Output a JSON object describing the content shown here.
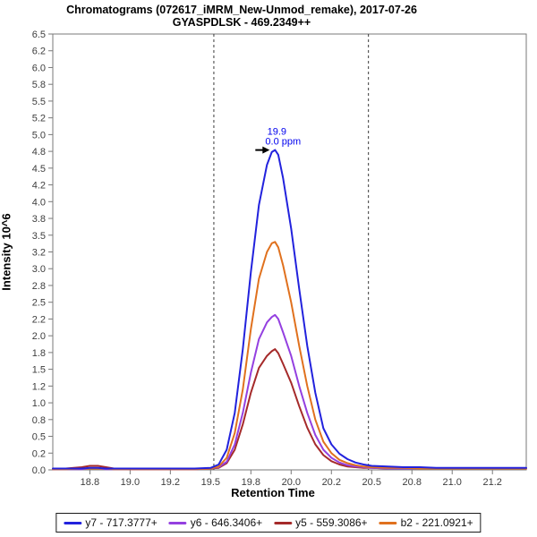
{
  "chart_data": {
    "type": "line",
    "title": "Chromatograms (072617_iMRM_New-Unmod_remake), 2017-07-26",
    "subtitle": "GYASPDLSK - 469.2349++",
    "xlabel": "Retention Time",
    "ylabel": "Intensity 10^6",
    "legend_position": "bottom",
    "grid": "off",
    "axes": {
      "x": {
        "min": 18.52,
        "max": 21.46,
        "ticks": [
          {
            "v": 18.75,
            "label": "18.8"
          },
          {
            "v": 19.0,
            "label": "19.0"
          },
          {
            "v": 19.25,
            "label": "19.2"
          },
          {
            "v": 19.5,
            "label": "19.5"
          },
          {
            "v": 19.75,
            "label": "19.8"
          },
          {
            "v": 20.0,
            "label": "20.0"
          },
          {
            "v": 20.25,
            "label": "20.2"
          },
          {
            "v": 20.5,
            "label": "20.5"
          },
          {
            "v": 20.75,
            "label": "20.8"
          },
          {
            "v": 21.0,
            "label": "21.0"
          },
          {
            "v": 21.25,
            "label": "21.2"
          }
        ]
      },
      "y": {
        "min": 0,
        "max": 6.5,
        "ticks": [
          {
            "v": 0,
            "label": "0.0"
          },
          {
            "v": 0.25,
            "label": "0.2"
          },
          {
            "v": 0.5,
            "label": "0.5"
          },
          {
            "v": 0.75,
            "label": "0.8"
          },
          {
            "v": 1,
            "label": "1.0"
          },
          {
            "v": 1.25,
            "label": "1.2"
          },
          {
            "v": 1.5,
            "label": "1.5"
          },
          {
            "v": 1.75,
            "label": "1.8"
          },
          {
            "v": 2,
            "label": "2.0"
          },
          {
            "v": 2.25,
            "label": "2.2"
          },
          {
            "v": 2.5,
            "label": "2.5"
          },
          {
            "v": 2.75,
            "label": "2.8"
          },
          {
            "v": 3,
            "label": "3.0"
          },
          {
            "v": 3.25,
            "label": "3.2"
          },
          {
            "v": 3.5,
            "label": "3.5"
          },
          {
            "v": 3.75,
            "label": "3.8"
          },
          {
            "v": 4,
            "label": "4.0"
          },
          {
            "v": 4.25,
            "label": "4.2"
          },
          {
            "v": 4.5,
            "label": "4.5"
          },
          {
            "v": 4.75,
            "label": "4.8"
          },
          {
            "v": 5,
            "label": "5.0"
          },
          {
            "v": 5.25,
            "label": "5.2"
          },
          {
            "v": 5.5,
            "label": "5.5"
          },
          {
            "v": 5.75,
            "label": "5.8"
          },
          {
            "v": 6,
            "label": "6.0"
          },
          {
            "v": 6.25,
            "label": "6.2"
          },
          {
            "v": 6.5,
            "label": "6.5"
          }
        ]
      }
    },
    "peak_boundaries": [
      19.52,
      20.48
    ],
    "annotation": {
      "rt": 19.9,
      "apex_intensity": 4.77,
      "lines": [
        "19.9",
        "0.0 ppm"
      ],
      "color": "#0000ee",
      "arrow_color": "#000000"
    },
    "x": [
      18.52,
      18.6,
      18.7,
      18.75,
      18.8,
      18.85,
      18.9,
      19.0,
      19.1,
      19.2,
      19.3,
      19.4,
      19.5,
      19.55,
      19.6,
      19.65,
      19.7,
      19.75,
      19.8,
      19.85,
      19.88,
      19.9,
      19.92,
      19.95,
      20.0,
      20.05,
      20.1,
      20.15,
      20.2,
      20.25,
      20.3,
      20.35,
      20.4,
      20.45,
      20.5,
      20.6,
      20.7,
      20.8,
      20.9,
      21.0,
      21.1,
      21.2,
      21.3,
      21.4,
      21.46
    ],
    "series": [
      {
        "id": "y7",
        "label": "y7 - 717.3777+",
        "color": "#2222dd",
        "values": [
          0.02,
          0.02,
          0.02,
          0.03,
          0.03,
          0.02,
          0.02,
          0.02,
          0.02,
          0.02,
          0.02,
          0.02,
          0.03,
          0.08,
          0.3,
          0.85,
          1.8,
          2.95,
          3.95,
          4.55,
          4.74,
          4.77,
          4.7,
          4.35,
          3.6,
          2.7,
          1.85,
          1.15,
          0.62,
          0.38,
          0.24,
          0.16,
          0.11,
          0.08,
          0.06,
          0.05,
          0.04,
          0.04,
          0.03,
          0.03,
          0.03,
          0.03,
          0.03,
          0.03,
          0.03
        ]
      },
      {
        "id": "y6",
        "label": "y6 - 646.3406+",
        "color": "#9440e0",
        "values": [
          0.01,
          0.01,
          0.01,
          0.02,
          0.02,
          0.01,
          0.01,
          0.01,
          0.01,
          0.01,
          0.01,
          0.01,
          0.02,
          0.04,
          0.12,
          0.38,
          0.85,
          1.45,
          1.95,
          2.2,
          2.28,
          2.31,
          2.25,
          2.05,
          1.7,
          1.25,
          0.85,
          0.52,
          0.3,
          0.18,
          0.11,
          0.07,
          0.05,
          0.04,
          0.03,
          0.02,
          0.02,
          0.02,
          0.02,
          0.02,
          0.02,
          0.02,
          0.02,
          0.02,
          0.02
        ]
      },
      {
        "id": "y5",
        "label": "y5 - 559.3086+",
        "color": "#a52a2a",
        "values": [
          0.01,
          0.02,
          0.04,
          0.06,
          0.06,
          0.04,
          0.02,
          0.01,
          0.01,
          0.01,
          0.01,
          0.01,
          0.02,
          0.03,
          0.1,
          0.3,
          0.68,
          1.15,
          1.52,
          1.7,
          1.77,
          1.8,
          1.74,
          1.58,
          1.3,
          0.95,
          0.63,
          0.38,
          0.22,
          0.13,
          0.08,
          0.05,
          0.04,
          0.03,
          0.03,
          0.02,
          0.02,
          0.02,
          0.02,
          0.02,
          0.02,
          0.02,
          0.02,
          0.02,
          0.02
        ]
      },
      {
        "id": "b2",
        "label": "b2 - 221.0921+",
        "color": "#e0711e",
        "values": [
          0.01,
          0.01,
          0.02,
          0.02,
          0.02,
          0.02,
          0.01,
          0.01,
          0.01,
          0.01,
          0.01,
          0.01,
          0.02,
          0.05,
          0.18,
          0.55,
          1.2,
          2.1,
          2.85,
          3.25,
          3.38,
          3.4,
          3.32,
          3.05,
          2.5,
          1.85,
          1.25,
          0.75,
          0.42,
          0.25,
          0.15,
          0.1,
          0.07,
          0.05,
          0.04,
          0.03,
          0.03,
          0.02,
          0.02,
          0.02,
          0.02,
          0.02,
          0.02,
          0.02,
          0.02
        ]
      }
    ],
    "draw_order": [
      "y5",
      "y6",
      "b2",
      "y7"
    ],
    "style": {
      "axis_color": "#7a7a7a",
      "tick_label_color": "#3d3d3d",
      "boundary_color": "#3a3a3a",
      "background": "#ffffff"
    }
  }
}
